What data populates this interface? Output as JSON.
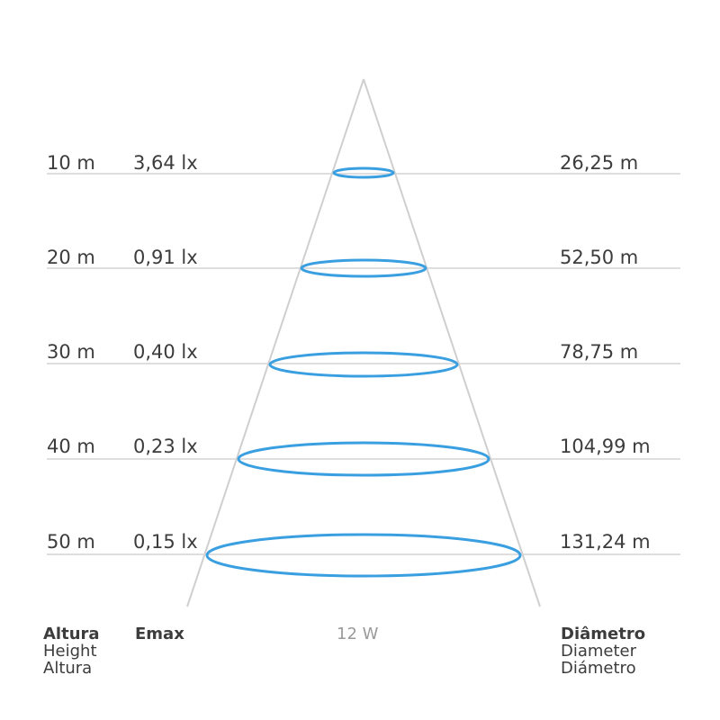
{
  "rows": [
    {
      "height": "10 m",
      "emax": "3,64 lx",
      "diameter": "26,25 m"
    },
    {
      "height": "20 m",
      "emax": "0,91 lx",
      "diameter": "52,50 m"
    },
    {
      "height": "30 m",
      "emax": "0,40 lx",
      "diameter": "78,75 m"
    },
    {
      "height": "40 m",
      "emax": "0,23 lx",
      "diameter": "104,99 m"
    },
    {
      "height": "50 m",
      "emax": "0,15 lx",
      "diameter": "131,24 m"
    }
  ],
  "footer": {
    "height": [
      "Altura",
      "Height",
      "Altura"
    ],
    "emax": "Emax",
    "power": "12 W",
    "diameter": [
      "Diâmetro",
      "Diameter",
      "Diámetro"
    ]
  },
  "colors": {
    "cone": "#cfcfcf",
    "row_line": "#d4d4d4",
    "ellipse": "#3a9fe0",
    "text": "#3c3c3c",
    "power_text": "#9a9a9a"
  }
}
